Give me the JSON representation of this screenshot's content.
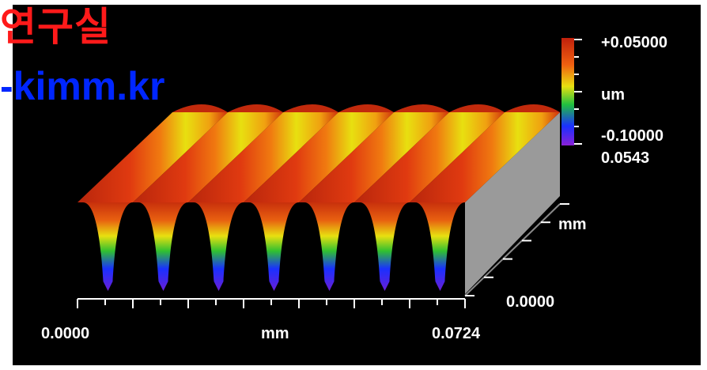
{
  "watermark": {
    "line1": "연구실",
    "line2": "-kimm.kr"
  },
  "colorbar": {
    "max_label": "+0.05000",
    "unit_label": "um",
    "min_label": "-0.10000",
    "extra_label": "0.0543"
  },
  "axes": {
    "x_start": "0.0000",
    "x_unit": "mm",
    "x_end": "0.0724",
    "y_unit": "mm",
    "y_start": "0.0000"
  },
  "surface": {
    "ridge_count": 7,
    "colors": [
      "#6a1fd6",
      "#1a2cff",
      "#1fbf2f",
      "#d8e60a",
      "#f0a20a",
      "#e0320e",
      "#c0280c"
    ]
  }
}
